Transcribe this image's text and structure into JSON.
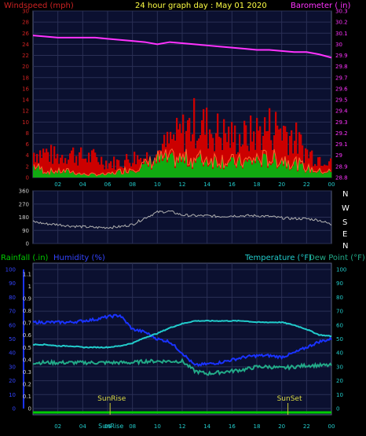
{
  "header": {
    "left_title": "Windspeed (mph)",
    "center_title": "24 hour graph day : May 01 2020",
    "right_title": "Barometer ( in)"
  },
  "bottom_header": {
    "rainfall": "Rainfall (.in)",
    "humidity": "Humidity (%)",
    "temperature": "Temperature (°F)",
    "dew_point": "Dew Point (°F)"
  },
  "x_ticks": [
    "02",
    "04",
    "06",
    "08",
    "10",
    "12",
    "14",
    "16",
    "18",
    "20",
    "22",
    "00"
  ],
  "compass": [
    "N",
    "W",
    "S",
    "E",
    "N"
  ],
  "sun_labels": {
    "sunrise": "SunRise",
    "sunset": "SunSet",
    "sunrise_bottom": "SunRise"
  },
  "colors": {
    "windspeed": "#cc0000",
    "windgust": "#ff6633",
    "barometer": "#ff33ff",
    "direction": "#b0b0b0",
    "rainfall": "#00cc00",
    "humidity": "#1a33ff",
    "temperature": "#22cccc",
    "dewpoint": "#22aa88",
    "panel_bg": "#0b1030",
    "grid": "#2a2f55"
  },
  "chart_data": [
    {
      "type": "area",
      "panel": "wind_barometer",
      "title": "24 hour graph day : May 01 2020",
      "left_axis": {
        "label": "Windspeed (mph)",
        "ticks": [
          0,
          2,
          4,
          6,
          8,
          10,
          12,
          14,
          16,
          18,
          20,
          22,
          24,
          26,
          28,
          30
        ],
        "range": [
          0,
          30
        ]
      },
      "right_axis": {
        "label": "Barometer ( in)",
        "ticks": [
          28.8,
          28.9,
          29,
          29.1,
          29.2,
          29.3,
          29.4,
          29.5,
          29.6,
          29.7,
          29.8,
          29.9,
          30,
          30.1,
          30.2,
          30.3
        ],
        "range": [
          28.8,
          30.3
        ]
      },
      "x": [
        0,
        1,
        2,
        3,
        4,
        5,
        6,
        7,
        8,
        9,
        10,
        11,
        12,
        13,
        14,
        15,
        16,
        17,
        18,
        19,
        20,
        21,
        22,
        23,
        24
      ],
      "series": [
        {
          "name": "Windspeed",
          "axis": "left",
          "values": [
            5,
            5,
            4,
            5,
            4,
            4,
            3,
            3,
            4,
            4,
            5,
            7,
            9,
            11,
            10,
            9,
            8,
            8,
            9,
            10,
            10,
            8,
            5,
            4,
            4
          ]
        },
        {
          "name": "Windgust avg",
          "axis": "left",
          "values": [
            2,
            1,
            1,
            1,
            0.5,
            0.5,
            0.5,
            1,
            1.5,
            2,
            3,
            3,
            3,
            3,
            3,
            3,
            2.5,
            2.5,
            3,
            3,
            3,
            2.5,
            1.5,
            1,
            1
          ]
        },
        {
          "name": "Barometer",
          "axis": "right",
          "values": [
            30.08,
            30.07,
            30.06,
            30.06,
            30.06,
            30.06,
            30.05,
            30.04,
            30.03,
            30.02,
            30.0,
            30.02,
            30.01,
            30.0,
            29.99,
            29.98,
            29.97,
            29.96,
            29.95,
            29.95,
            29.94,
            29.93,
            29.93,
            29.91,
            29.88
          ]
        }
      ]
    },
    {
      "type": "line",
      "panel": "wind_direction",
      "left_axis": {
        "ticks": [
          0,
          90,
          180,
          270,
          360
        ],
        "range": [
          0,
          360
        ]
      },
      "x": [
        0,
        1,
        2,
        3,
        4,
        5,
        6,
        7,
        8,
        9,
        10,
        11,
        12,
        13,
        14,
        15,
        16,
        17,
        18,
        19,
        20,
        21,
        22,
        23,
        24
      ],
      "series": [
        {
          "name": "Wind direction",
          "values": [
            150,
            135,
            130,
            120,
            115,
            110,
            110,
            115,
            130,
            175,
            215,
            220,
            195,
            190,
            190,
            185,
            190,
            190,
            190,
            185,
            175,
            170,
            170,
            160,
            130
          ]
        }
      ]
    },
    {
      "type": "line",
      "panel": "rain_humidity_temperature",
      "left_axis": {
        "label": "Humidity (%)",
        "ticks": [
          0,
          10,
          20,
          30,
          40,
          50,
          60,
          70,
          80,
          90,
          100
        ],
        "range": [
          0,
          100
        ]
      },
      "rain_axis": {
        "label": "Rainfall (.in)",
        "ticks": [
          0,
          0.1,
          0.2,
          0.3,
          0.4,
          0.5,
          0.6,
          0.7,
          0.8,
          0.9,
          1,
          1.1
        ],
        "range": [
          0,
          1.1
        ]
      },
      "right_axis": {
        "label": "Temperature (°F)",
        "ticks": [
          0,
          10,
          20,
          30,
          40,
          50,
          60,
          70,
          80,
          90,
          100
        ],
        "range": [
          0,
          100
        ]
      },
      "x": [
        0,
        1,
        2,
        3,
        4,
        5,
        6,
        7,
        8,
        9,
        10,
        11,
        12,
        13,
        14,
        15,
        16,
        17,
        18,
        19,
        20,
        21,
        22,
        23,
        24
      ],
      "sunrise_hour": 6.2,
      "sunset_hour": 20.5,
      "series": [
        {
          "name": "Humidity",
          "values": [
            62,
            62,
            62,
            62,
            63,
            64,
            66,
            67,
            57,
            55,
            50,
            48,
            40,
            31,
            32,
            33,
            35,
            37,
            38,
            38,
            37,
            40,
            44,
            48,
            50
          ]
        },
        {
          "name": "Temperature",
          "values": [
            46,
            46,
            45,
            45,
            44,
            44,
            44,
            45,
            47,
            51,
            54,
            58,
            61,
            63,
            63,
            63,
            63,
            63,
            62,
            62,
            62,
            60,
            57,
            53,
            52
          ]
        },
        {
          "name": "Dew Point",
          "values": [
            33,
            33,
            33,
            33,
            33,
            33,
            33,
            33,
            33,
            34,
            34,
            34,
            34,
            27,
            25,
            26,
            27,
            28,
            30,
            30,
            29,
            30,
            31,
            31,
            31
          ]
        },
        {
          "name": "Rainfall",
          "values": [
            0,
            0,
            0,
            0,
            0,
            0,
            0,
            0,
            0,
            0,
            0,
            0,
            0,
            0,
            0,
            0,
            0,
            0,
            0,
            0,
            0,
            0,
            0,
            0,
            0
          ]
        }
      ]
    }
  ]
}
